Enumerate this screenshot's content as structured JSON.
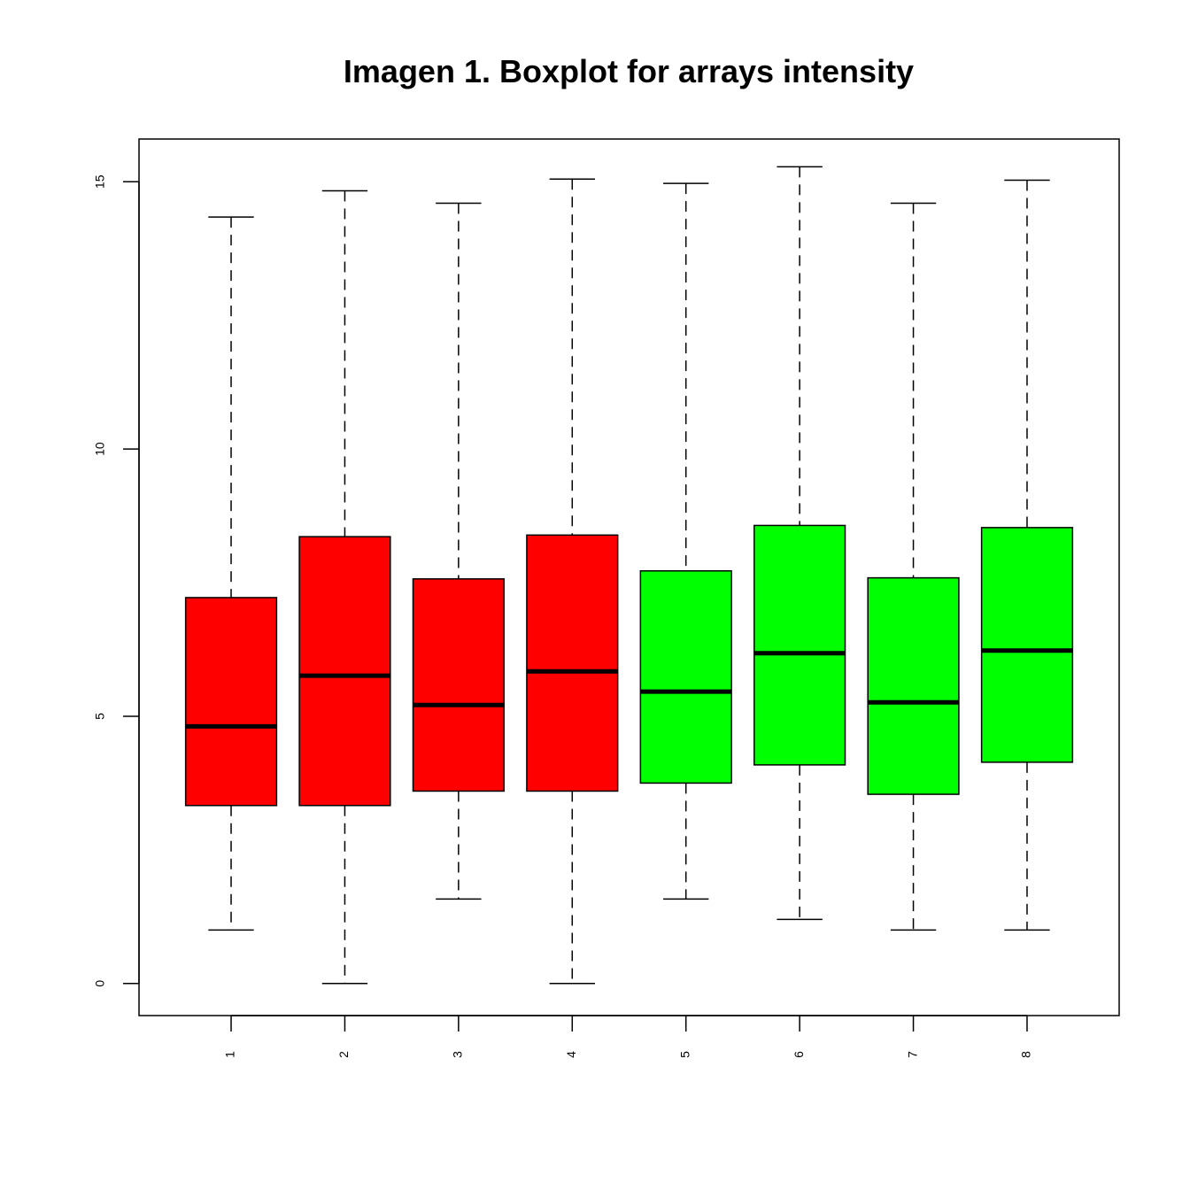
{
  "chart_data": {
    "type": "boxplot",
    "title": "Imagen 1. Boxplot for arrays intensity",
    "xlabel": "",
    "ylabel": "",
    "ylim": [
      -0.6,
      15.8
    ],
    "yticks": [
      0,
      5,
      10,
      15
    ],
    "categories": [
      "1",
      "2",
      "3",
      "4",
      "5",
      "6",
      "7",
      "8"
    ],
    "boxes": [
      {
        "label": "1",
        "min": 1.0,
        "q1": 3.33,
        "median": 4.81,
        "q3": 7.22,
        "max": 14.34,
        "color": "#ff0000"
      },
      {
        "label": "2",
        "min": 0.0,
        "q1": 3.33,
        "median": 5.76,
        "q3": 8.36,
        "max": 14.83,
        "color": "#ff0000"
      },
      {
        "label": "3",
        "min": 1.58,
        "q1": 3.6,
        "median": 5.21,
        "q3": 7.57,
        "max": 14.6,
        "color": "#ff0000"
      },
      {
        "label": "4",
        "min": 0.0,
        "q1": 3.6,
        "median": 5.84,
        "q3": 8.39,
        "max": 15.05,
        "color": "#ff0000"
      },
      {
        "label": "5",
        "min": 1.58,
        "q1": 3.75,
        "median": 5.46,
        "q3": 7.72,
        "max": 14.97,
        "color": "#00ff00"
      },
      {
        "label": "6",
        "min": 1.2,
        "q1": 4.09,
        "median": 6.18,
        "q3": 8.57,
        "max": 15.28,
        "color": "#00ff00"
      },
      {
        "label": "7",
        "min": 1.0,
        "q1": 3.54,
        "median": 5.26,
        "q3": 7.59,
        "max": 14.6,
        "color": "#00ff00"
      },
      {
        "label": "8",
        "min": 1.0,
        "q1": 4.14,
        "median": 6.23,
        "q3": 8.53,
        "max": 15.03,
        "color": "#00ff00"
      }
    ]
  }
}
